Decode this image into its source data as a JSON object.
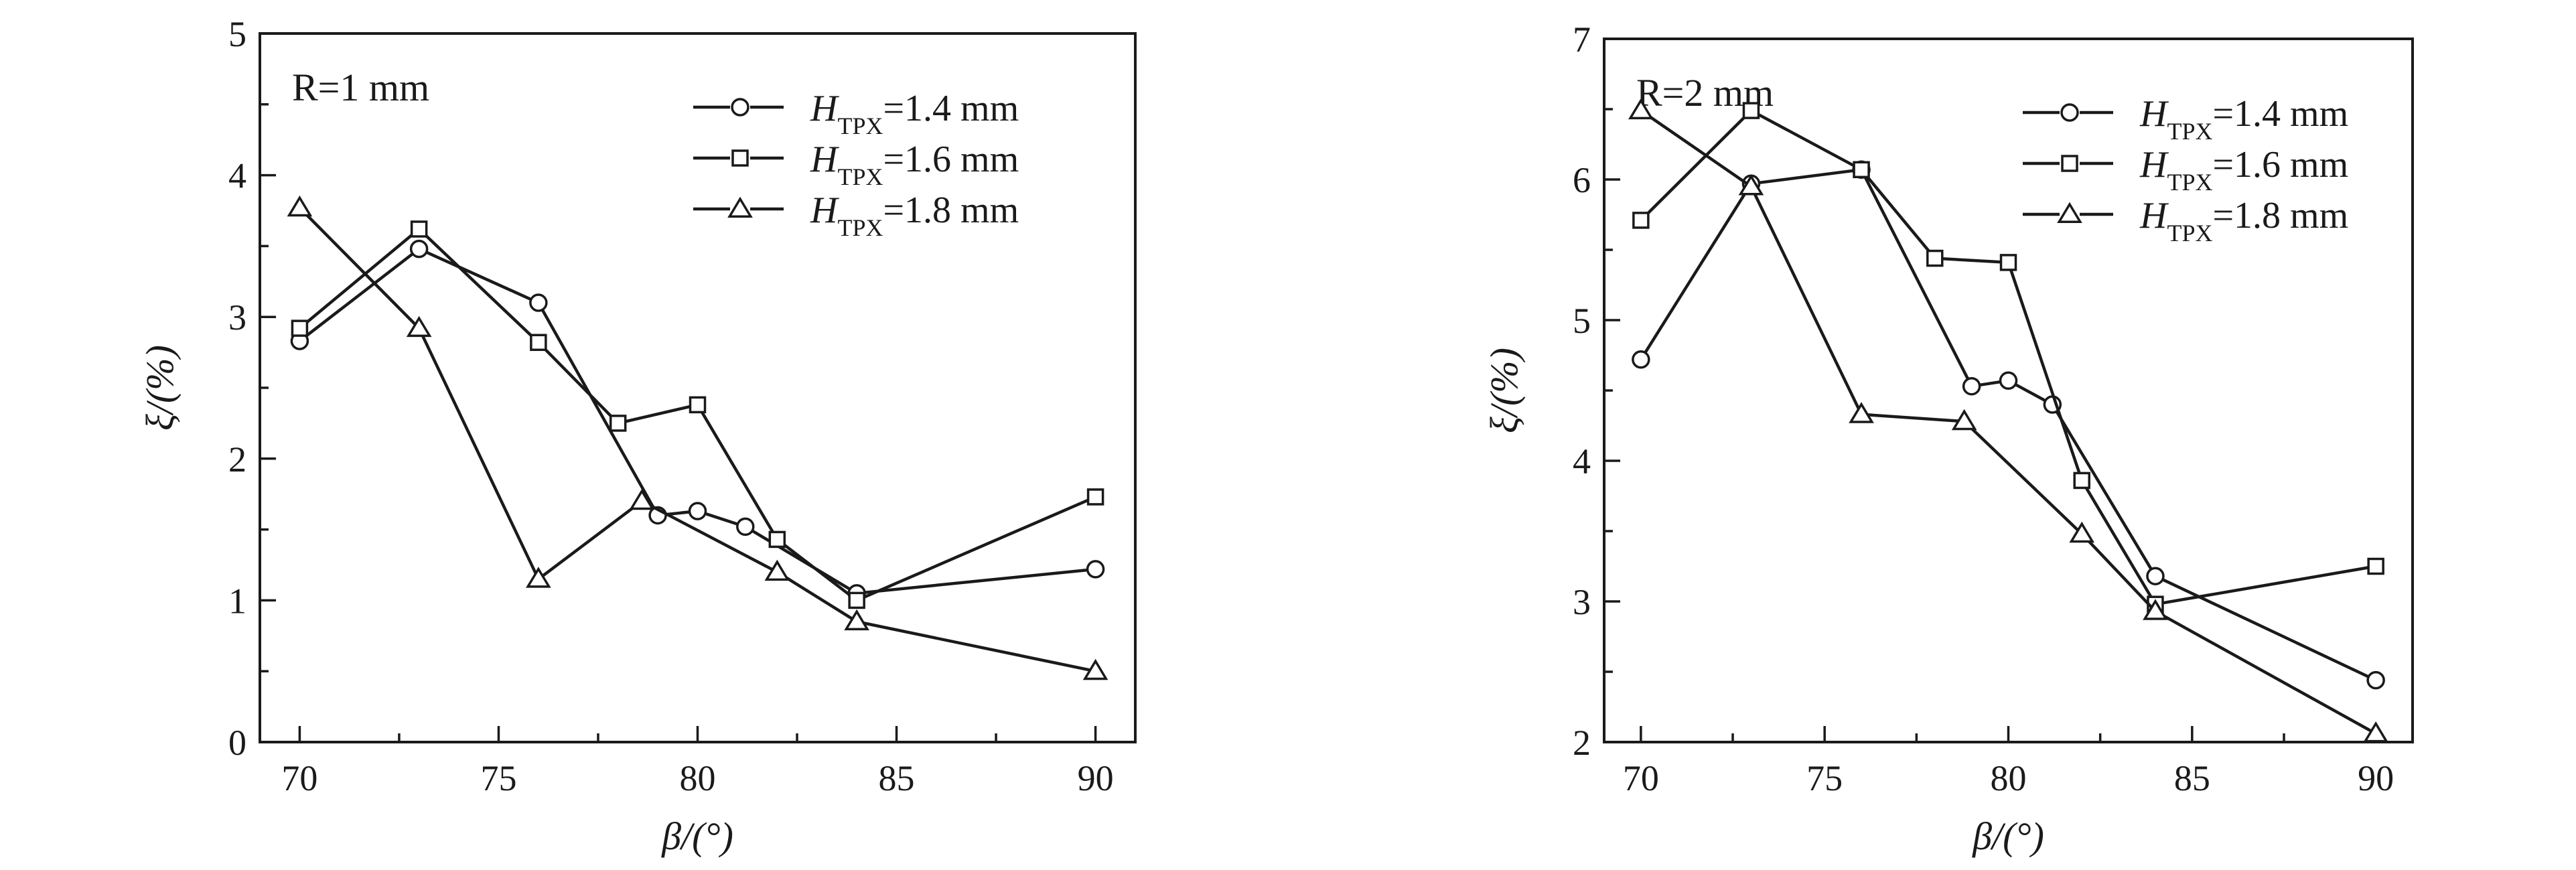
{
  "chart_data": [
    {
      "type": "line",
      "panel_label": "R=1 mm",
      "xlabel": "β/(°)",
      "ylabel": "ξ/(%)",
      "xlim": [
        69,
        91
      ],
      "ylim": [
        0,
        5
      ],
      "xticks": [
        70,
        75,
        80,
        85,
        90
      ],
      "yticks": [
        0,
        1,
        2,
        3,
        4,
        5
      ],
      "legend_position": "top-right",
      "series": [
        {
          "name": "HTPX=1.4 mm",
          "name_main": "H",
          "name_sub": "TPX",
          "name_rest": "=1.4 mm",
          "marker": "circle",
          "x": [
            70,
            73,
            76,
            79,
            80,
            81.2,
            84,
            90
          ],
          "y": [
            2.83,
            3.48,
            3.1,
            1.6,
            1.63,
            1.52,
            1.05,
            1.22
          ]
        },
        {
          "name": "HTPX=1.6 mm",
          "name_main": "H",
          "name_sub": "TPX",
          "name_rest": "=1.6 mm",
          "marker": "square",
          "x": [
            70,
            73,
            76,
            78,
            80,
            82,
            84,
            90
          ],
          "y": [
            2.92,
            3.62,
            2.82,
            2.25,
            2.38,
            1.43,
            1.0,
            1.73
          ]
        },
        {
          "name": "HTPX=1.8 mm",
          "name_main": "H",
          "name_sub": "TPX",
          "name_rest": "=1.8 mm",
          "marker": "triangle",
          "x": [
            70,
            73,
            76,
            78.6,
            82,
            84,
            90
          ],
          "y": [
            3.77,
            2.92,
            1.15,
            1.7,
            1.2,
            0.85,
            0.5
          ]
        }
      ]
    },
    {
      "type": "line",
      "panel_label": "R=2 mm",
      "xlabel": "β/(°)",
      "ylabel": "ξ/(%)",
      "xlim": [
        69,
        91
      ],
      "ylim": [
        2,
        7
      ],
      "xticks": [
        70,
        75,
        80,
        85,
        90
      ],
      "yticks": [
        2,
        3,
        4,
        5,
        6,
        7
      ],
      "legend_position": "top-right",
      "series": [
        {
          "name": "HTPX=1.4 mm",
          "name_main": "H",
          "name_sub": "TPX",
          "name_rest": "=1.4 mm",
          "marker": "circle",
          "x": [
            70,
            73,
            76,
            79,
            80,
            81.2,
            84,
            90
          ],
          "y": [
            4.72,
            5.97,
            6.07,
            4.53,
            4.57,
            4.4,
            3.18,
            2.44
          ]
        },
        {
          "name": "HTPX=1.6 mm",
          "name_main": "H",
          "name_sub": "TPX",
          "name_rest": "=1.6 mm",
          "marker": "square",
          "x": [
            70,
            73,
            76,
            78,
            80,
            82,
            84,
            90
          ],
          "y": [
            5.71,
            6.49,
            6.07,
            5.44,
            5.41,
            3.86,
            2.98,
            3.25
          ]
        },
        {
          "name": "HTPX=1.8 mm",
          "name_main": "H",
          "name_sub": "TPX",
          "name_rest": "=1.8 mm",
          "marker": "triangle",
          "x": [
            70,
            73,
            76,
            78.8,
            82,
            84,
            90
          ],
          "y": [
            6.49,
            5.95,
            4.33,
            4.28,
            3.48,
            2.93,
            2.06
          ]
        }
      ]
    }
  ]
}
